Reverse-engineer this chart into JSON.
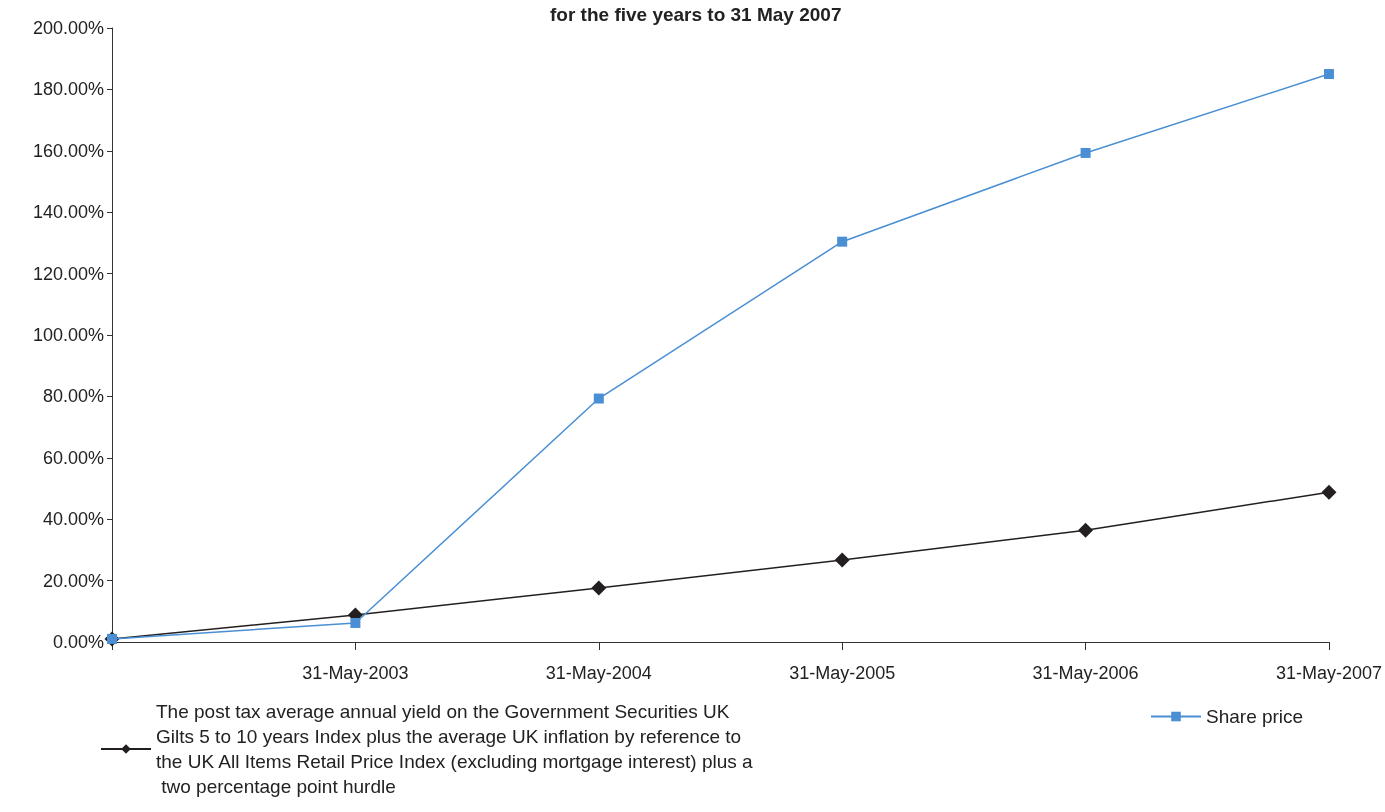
{
  "chart_data": {
    "type": "line",
    "title": "for the five years to 31 May 2007",
    "categories": [
      null,
      "31-May-2003",
      "31-May-2004",
      "31-May-2005",
      "31-May-2006",
      "31-May-2007"
    ],
    "series": [
      {
        "name": "The post tax average annual yield on the Government Securities UK Gilts 5 to 10 years Index plus the average UK inflation by reference to the UK All Items Retail Price Index (excluding mortgage interest) plus a two percentage point hurdle",
        "color": "#231f20",
        "marker": "diamond",
        "values": [
          1,
          8.8,
          17.6,
          26.7,
          36.4,
          48.8
        ]
      },
      {
        "name": "Share price",
        "color": "#4a8fd4",
        "marker": "square",
        "values": [
          1,
          6.2,
          79.3,
          130.4,
          159.3,
          185
        ]
      }
    ],
    "ylim": [
      0,
      200
    ],
    "yticks": [
      {
        "value": 0,
        "label": "0.00%"
      },
      {
        "value": 20,
        "label": "20.00%"
      },
      {
        "value": 40,
        "label": "40.00%"
      },
      {
        "value": 60,
        "label": "60.00%"
      },
      {
        "value": 80,
        "label": "80.00%"
      },
      {
        "value": 100,
        "label": "100.00%"
      },
      {
        "value": 120,
        "label": "120.00%"
      },
      {
        "value": 140,
        "label": "140.00%"
      },
      {
        "value": 160,
        "label": "160.00%"
      },
      {
        "value": 180,
        "label": "180.00%"
      },
      {
        "value": 200,
        "label": "200.00%"
      }
    ],
    "grid": false,
    "legend": "bottom"
  }
}
